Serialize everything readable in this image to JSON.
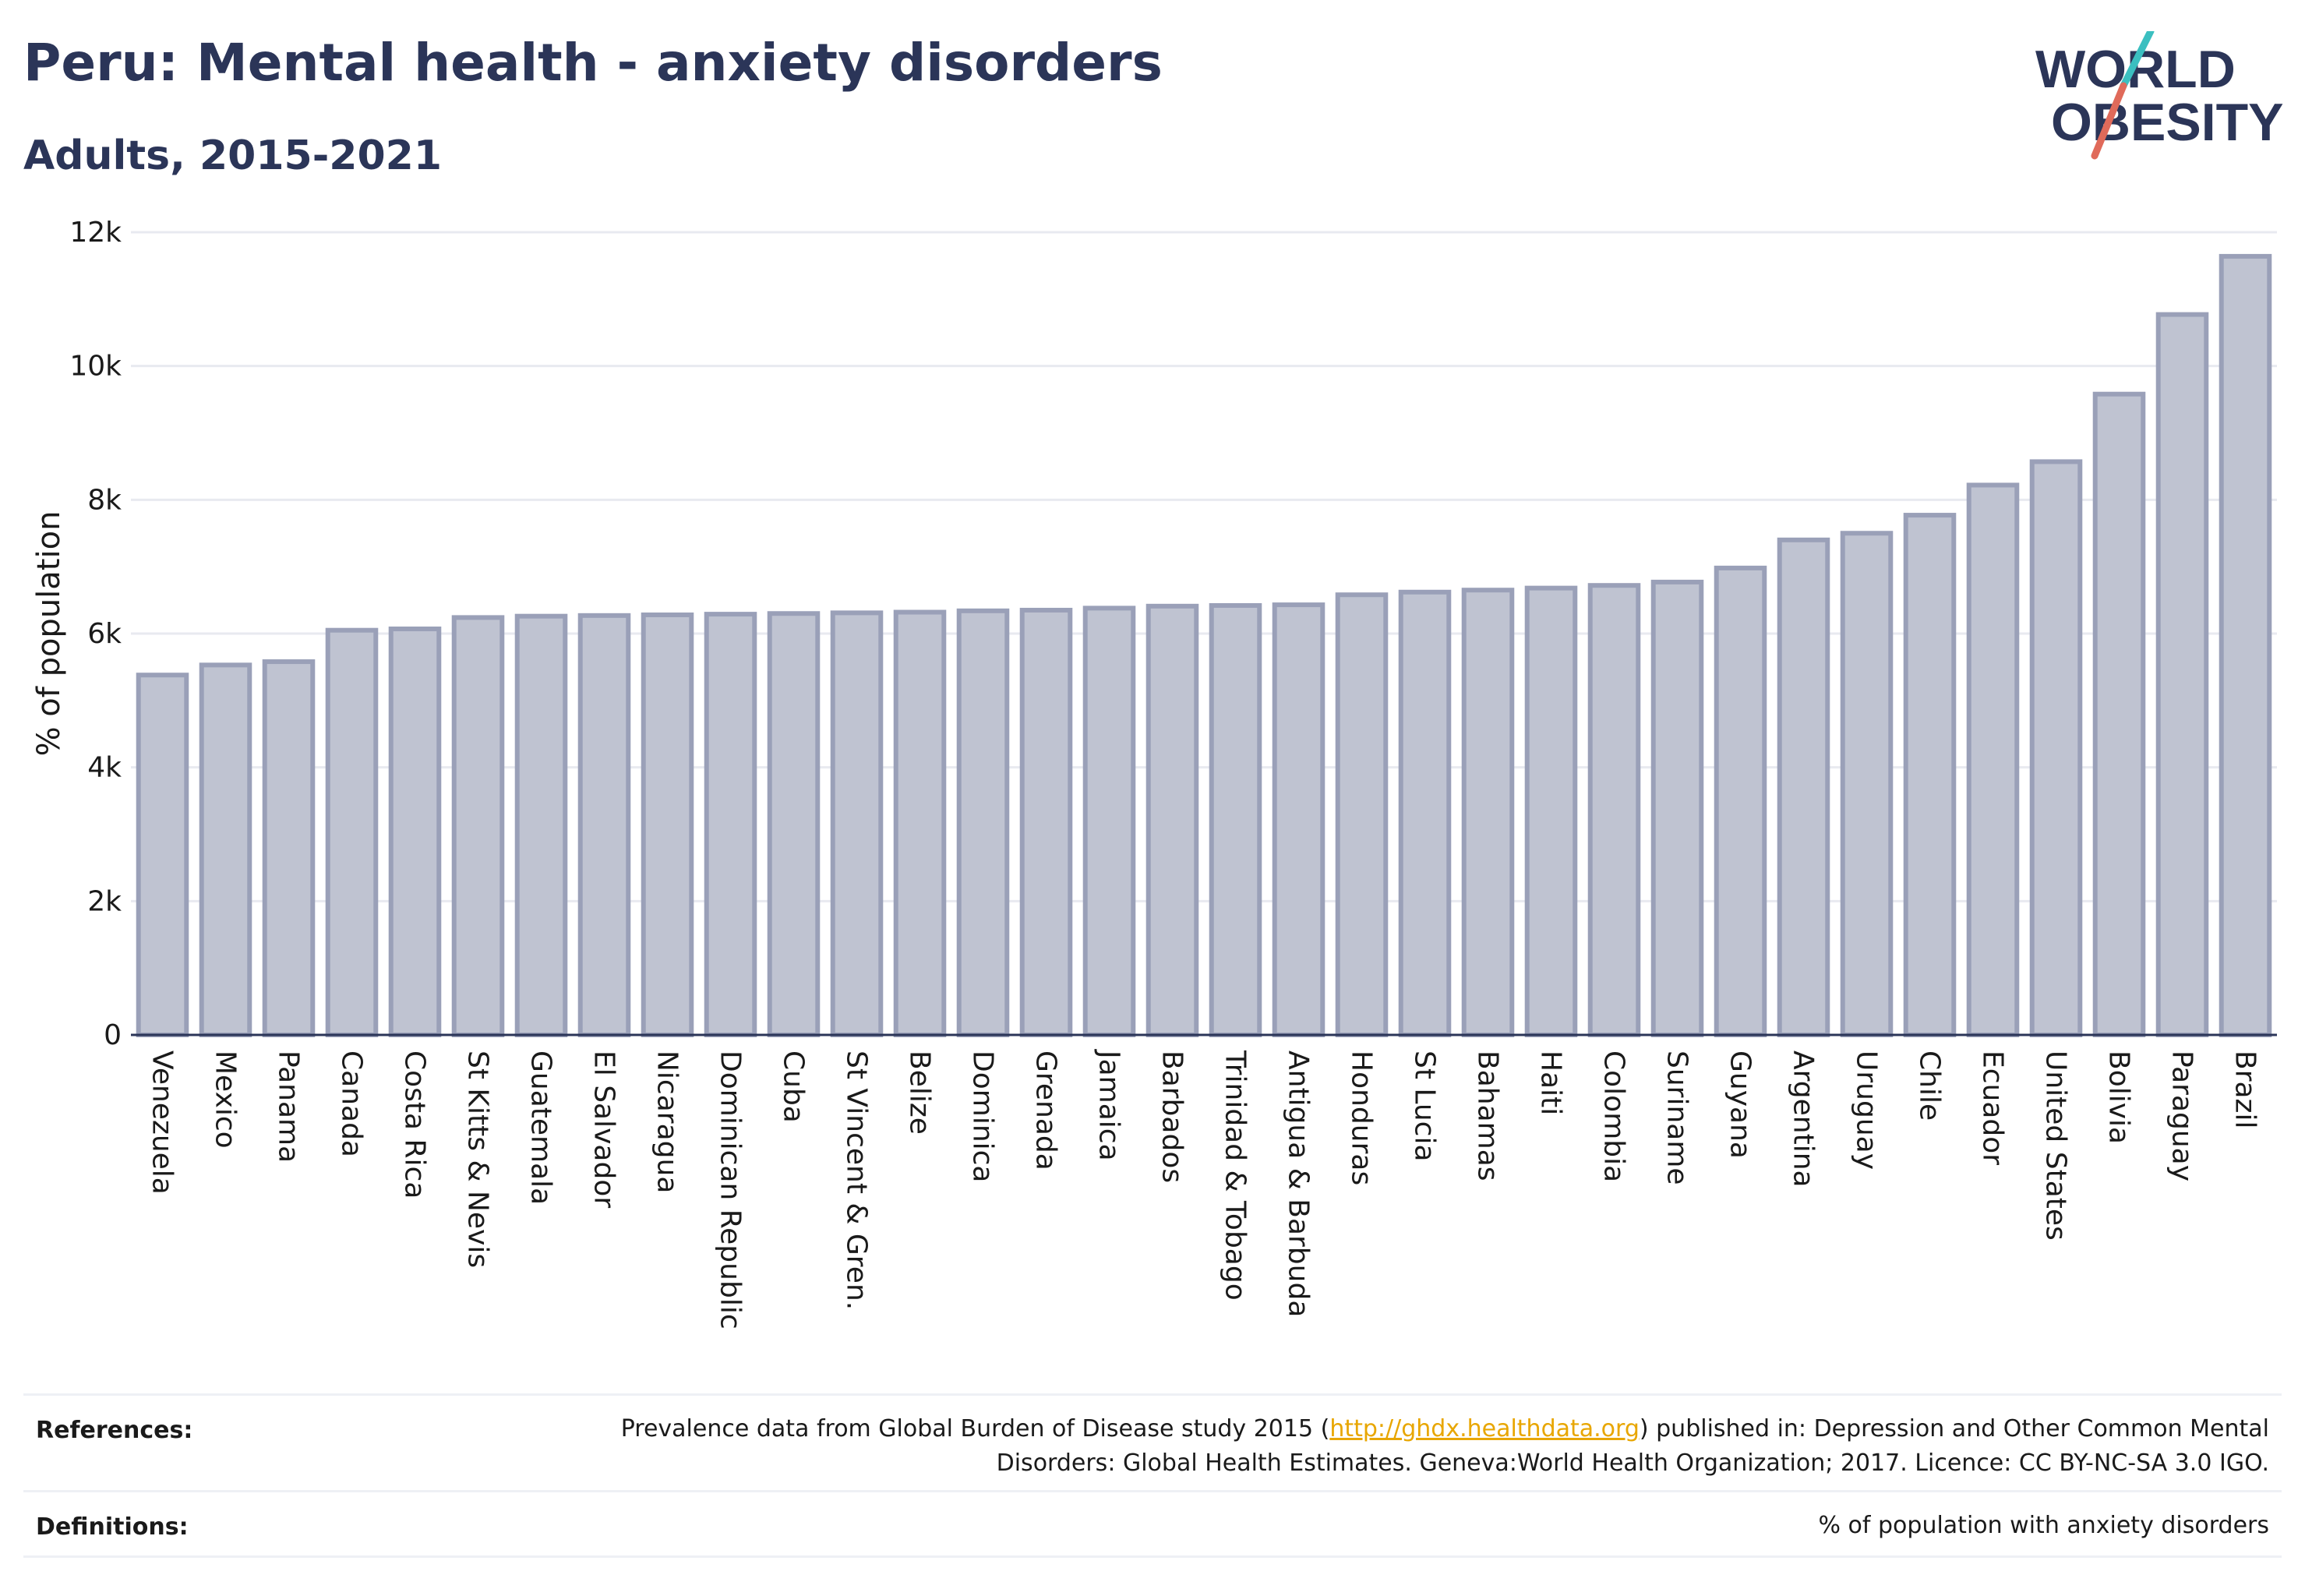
{
  "title": "Peru: Mental health - anxiety disorders",
  "subtitle": "Adults, 2015-2021",
  "logo": {
    "line1": "WORLD",
    "line2": "OBESITY",
    "accent_teal": "#3bbfc0",
    "accent_red": "#e06a5a",
    "color": "#2b3558"
  },
  "colors": {
    "bar_fill": "#bfc3d1",
    "bar_stroke": "#9aa0b8",
    "grid": "#e8eaf0",
    "axis": "#2b3558",
    "text": "#1a1a1a",
    "link": "#e8a600"
  },
  "references": {
    "label": "References:",
    "text_before": "Prevalence data from Global Burden of Disease study 2015 (",
    "link": "http://ghdx.healthdata.org",
    "text_after": ") published in: Depression and Other Common Mental Disorders: Global Health Estimates. Geneva:World Health Organization; 2017. Licence: CC BY-NC-SA 3.0 IGO."
  },
  "definitions": {
    "label": "Definitions:",
    "text": "% of population with anxiety disorders"
  },
  "chart_data": {
    "type": "bar",
    "ylabel": "% of population",
    "ylim": [
      0,
      12000
    ],
    "yticks": [
      0,
      2000,
      4000,
      6000,
      8000,
      10000,
      12000
    ],
    "ytick_labels": [
      "0",
      "2k",
      "4k",
      "6k",
      "8k",
      "10k",
      "12k"
    ],
    "grid": true,
    "categories": [
      "Venezuela",
      "Mexico",
      "Panama",
      "Canada",
      "Costa Rica",
      "St Kitts & Nevis",
      "Guatemala",
      "El Salvador",
      "Nicaragua",
      "Dominican Republic",
      "Cuba",
      "St Vincent & Gren.",
      "Belize",
      "Dominica",
      "Grenada",
      "Jamaica",
      "Barbados",
      "Trinidad & Tobago",
      "Antigua & Barbuda",
      "Honduras",
      "St Lucia",
      "Bahamas",
      "Haiti",
      "Colombia",
      "Suriname",
      "Guyana",
      "Argentina",
      "Uruguay",
      "Chile",
      "Ecuador",
      "United States",
      "Bolivia",
      "Paraguay",
      "Brazil"
    ],
    "values": [
      5380,
      5530,
      5580,
      6050,
      6070,
      6240,
      6260,
      6270,
      6280,
      6290,
      6300,
      6310,
      6320,
      6340,
      6350,
      6380,
      6410,
      6420,
      6430,
      6580,
      6620,
      6650,
      6680,
      6720,
      6770,
      6980,
      7400,
      7500,
      7770,
      8220,
      8570,
      9580,
      10770,
      11640
    ]
  }
}
